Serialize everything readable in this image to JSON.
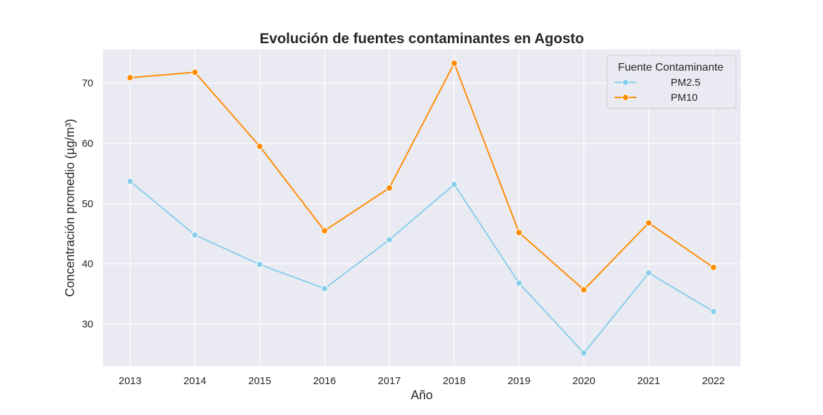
{
  "chart_data": {
    "type": "line",
    "title": "Evolución de fuentes contaminantes en Agosto",
    "xlabel": "Año",
    "ylabel": "Concentración promedio (µg/m³)",
    "x": [
      2013,
      2014,
      2015,
      2016,
      2017,
      2018,
      2019,
      2020,
      2021,
      2022
    ],
    "x_tick_labels": [
      "2013",
      "2014",
      "2015",
      "2016",
      "2017",
      "2018",
      "2019",
      "2020",
      "2021",
      "2022"
    ],
    "y_ticks": [
      30,
      40,
      50,
      60,
      70
    ],
    "ylim": [
      23.0,
      75.6
    ],
    "xlim": [
      2012.58,
      2022.42
    ],
    "grid": true,
    "legend": {
      "title": "Fuente Contaminante",
      "placement": "top-right"
    },
    "series": [
      {
        "name": "PM2.5",
        "color": "#87ceeb",
        "values": [
          53.7,
          44.8,
          39.9,
          35.9,
          44.0,
          53.2,
          36.8,
          25.2,
          38.5,
          32.1
        ]
      },
      {
        "name": "PM10",
        "color": "#ff8c00",
        "values": [
          70.9,
          71.8,
          59.5,
          45.5,
          52.6,
          73.3,
          45.2,
          35.7,
          46.8,
          39.4
        ]
      }
    ],
    "background_color": "#eaeaf2",
    "grid_color": "#ffffff"
  }
}
